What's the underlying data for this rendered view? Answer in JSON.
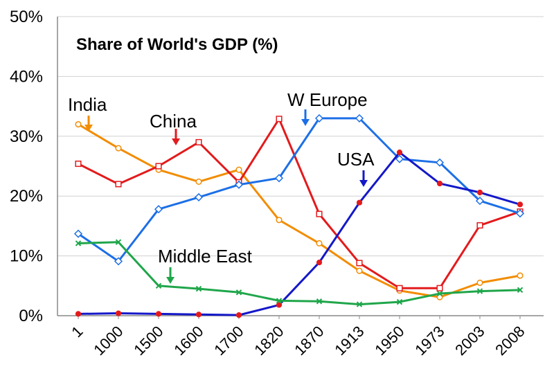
{
  "chart_data": {
    "type": "line",
    "title": "Share of World's GDP (%)",
    "xlabel": "",
    "ylabel": "",
    "categories": [
      "1",
      "1000",
      "1500",
      "1600",
      "1700",
      "1820",
      "1870",
      "1913",
      "1950",
      "1973",
      "2003",
      "2008"
    ],
    "y_ticks": [
      "0%",
      "10%",
      "20%",
      "30%",
      "40%",
      "50%"
    ],
    "ylim": [
      0,
      50
    ],
    "grid": "horizontal",
    "series": [
      {
        "name": "India",
        "color": "#F28C00",
        "marker": "circle",
        "values": [
          32.0,
          28.0,
          24.4,
          22.4,
          24.4,
          16.0,
          12.1,
          7.5,
          4.2,
          3.1,
          5.5,
          6.7
        ]
      },
      {
        "name": "China",
        "color": "#E31A1C",
        "marker": "square",
        "values": [
          25.4,
          22.0,
          25.0,
          29.0,
          22.3,
          32.9,
          17.0,
          8.8,
          4.6,
          4.6,
          15.1,
          17.4
        ]
      },
      {
        "name": "W Europe",
        "color": "#1C6FE6",
        "marker": "diamond",
        "values": [
          13.7,
          9.1,
          17.8,
          19.8,
          21.9,
          23.0,
          33.0,
          33.0,
          26.2,
          25.6,
          19.2,
          17.1
        ]
      },
      {
        "name": "USA",
        "color": "#1418C8",
        "marker": "dot",
        "values": [
          0.3,
          0.4,
          0.3,
          0.2,
          0.1,
          1.8,
          8.9,
          18.9,
          27.3,
          22.1,
          20.6,
          18.6
        ]
      },
      {
        "name": "Middle East",
        "color": "#1FA64A",
        "marker": "x",
        "values": [
          12.1,
          12.3,
          5.0,
          4.5,
          3.9,
          2.5,
          2.4,
          1.9,
          2.3,
          3.7,
          4.1,
          4.3
        ]
      }
    ],
    "annotations": [
      {
        "label": "India",
        "color": "#F28C00"
      },
      {
        "label": "China",
        "color": "#E31A1C"
      },
      {
        "label": "W Europe",
        "color": "#1C6FE6"
      },
      {
        "label": "USA",
        "color": "#1418C8"
      },
      {
        "label": "Middle East",
        "color": "#1FA64A"
      }
    ]
  }
}
